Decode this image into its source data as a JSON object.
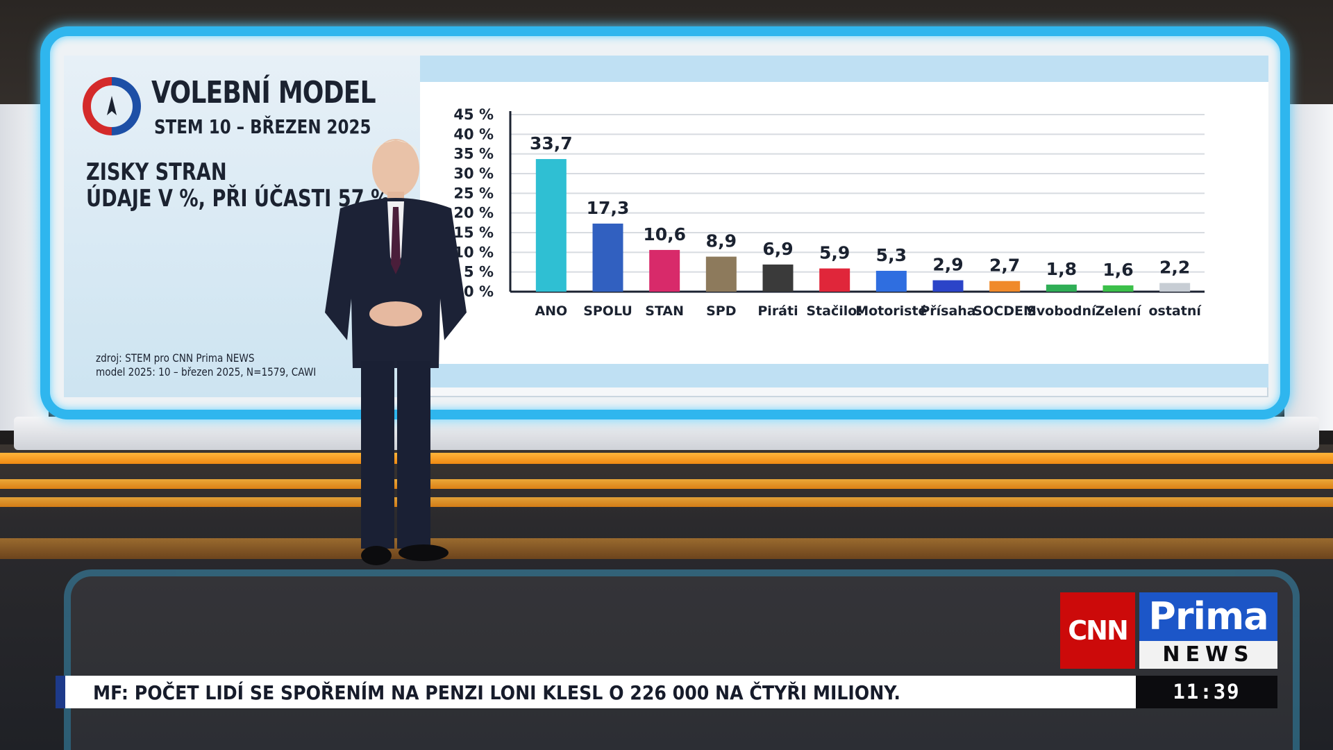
{
  "panel": {
    "title": "VOLEBNÍ MODEL",
    "subtitle": "STEM 10 – BŘEZEN 2025",
    "heading_1": "ZISKY STRAN",
    "heading_2": "ÚDAJE V %, PŘI ÚČASTI 57 %",
    "source_1": "zdroj: STEM pro CNN Prima NEWS",
    "source_2": "model 2025: 10 – březen 2025, N=1579, CAWI"
  },
  "colors": {
    "wall_frame": "#2fb6ee",
    "logo_red": "#d42a2a",
    "logo_blue": "#1d4fa6"
  },
  "chart_data": {
    "type": "bar",
    "categories": [
      "ANO",
      "SPOLU",
      "STAN",
      "SPD",
      "Piráti",
      "Stačilo!",
      "Motoristé",
      "Přísaha",
      "SOCDEM",
      "Svobodní",
      "Zelení",
      "ostatní"
    ],
    "values": [
      33.7,
      17.3,
      10.6,
      8.9,
      6.9,
      5.9,
      5.3,
      2.9,
      2.7,
      1.8,
      1.6,
      2.2
    ],
    "value_labels": [
      "33,7",
      "17,3",
      "10,6",
      "8,9",
      "6,9",
      "5,9",
      "5,3",
      "2,9",
      "2,7",
      "1,8",
      "1,6",
      "2,2"
    ],
    "bar_colors": [
      "#2fbfd3",
      "#3160c0",
      "#d82a6a",
      "#8d7a5c",
      "#3a3a3a",
      "#e0263a",
      "#2f6ee0",
      "#2b44c8",
      "#f08a2a",
      "#2fae56",
      "#3cc04a",
      "#c7cdd4"
    ],
    "y_ticks": [
      "0 %",
      "5 %",
      "10 %",
      "15 %",
      "20 %",
      "25 %",
      "30 %",
      "35 %",
      "40 %",
      "45 %"
    ],
    "ylim": [
      0,
      45
    ],
    "grid": true
  },
  "ticker": {
    "headline": "MF: POČET LIDÍ SE SPOŘENÍM NA PENZI LONI KLESL O 226 000 NA ČTYŘI MILIONY.",
    "time": "11:39"
  },
  "branding": {
    "cnn": "CNN",
    "prima": "Prima",
    "news": "NEWS"
  }
}
